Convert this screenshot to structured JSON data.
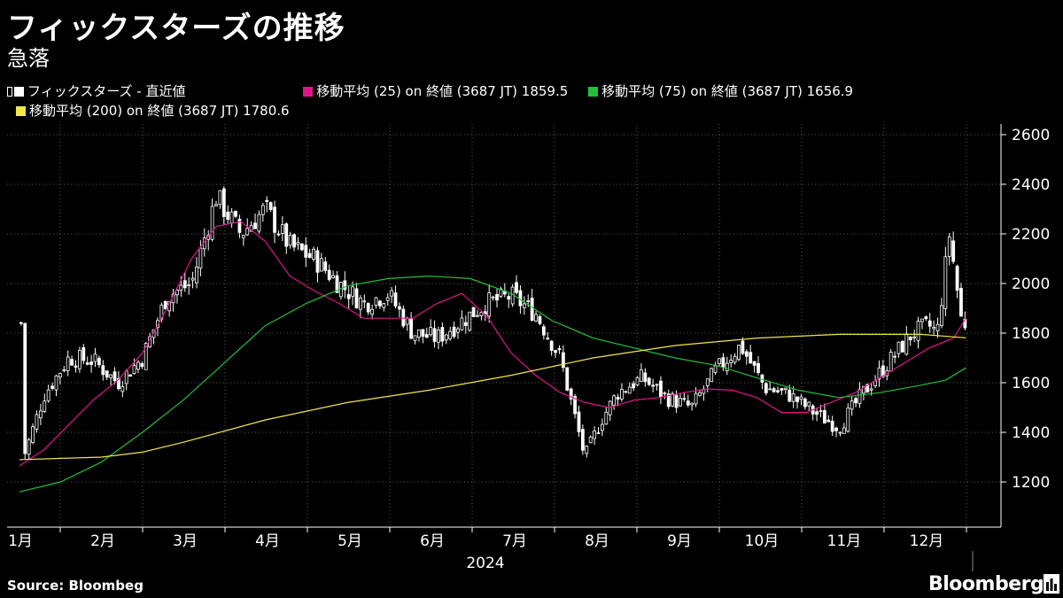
{
  "header": {
    "title": "フィックスターズの推移",
    "subtitle": "急落"
  },
  "legend": [
    {
      "label": "フィックスターズ - 直近値",
      "color": "#ffffff",
      "kind": "candle"
    },
    {
      "label": "移動平均 (25)  on 終値 (3687 JT) 1859.5",
      "color": "#e0158a",
      "kind": "square"
    },
    {
      "label": "移動平均 (75)  on 終値 (3687 JT) 1656.9",
      "color": "#22c03a",
      "kind": "square"
    },
    {
      "label": "移動平均 (200)  on 終値 (3687 JT) 1780.6",
      "color": "#f2e84a",
      "kind": "square"
    }
  ],
  "footer": {
    "source": "Source:  Bloombeg",
    "logo": "Bloomberg",
    "logo_icon": "bloomberg-terminal-icon"
  },
  "colors": {
    "background": "#000000",
    "candle": "#ffffff",
    "ma25": "#e0158a",
    "ma75": "#22c03a",
    "ma200": "#f2e84a",
    "grid": "#5a5a5a"
  },
  "chart_data": {
    "type": "line",
    "year_label": "2024",
    "x_categories": [
      "1月",
      "2月",
      "3月",
      "4月",
      "5月",
      "6月",
      "7月",
      "8月",
      "9月",
      "10月",
      "11月",
      "12月"
    ],
    "y_ticks": [
      1200,
      1400,
      1600,
      1800,
      2000,
      2200,
      2400,
      2600
    ],
    "ylim": [
      1050,
      2600
    ],
    "grid": "dotted vertical and horizontal",
    "candles_close_approx": {
      "months": [
        0.05,
        0.3,
        0.6,
        0.9,
        1.2,
        1.5,
        1.8,
        2.1,
        2.4,
        2.7,
        3.0,
        3.3,
        3.6,
        3.9,
        4.2,
        4.5,
        4.8,
        5.1,
        5.4,
        5.7,
        6.0,
        6.3,
        6.6,
        6.9,
        7.1,
        7.3,
        7.6,
        7.9,
        8.2,
        8.5,
        8.8,
        9.1,
        9.4,
        9.7,
        10.0,
        10.3,
        10.6,
        10.9,
        11.1,
        11.2,
        11.35,
        11.5
      ],
      "close": [
        1300,
        1550,
        1700,
        1690,
        1600,
        1700,
        1950,
        2000,
        2350,
        2200,
        2300,
        2150,
        2100,
        2000,
        1920,
        1960,
        1800,
        1780,
        1850,
        1920,
        1950,
        1880,
        1700,
        1300,
        1450,
        1560,
        1620,
        1540,
        1500,
        1650,
        1750,
        1580,
        1550,
        1480,
        1420,
        1560,
        1680,
        1800,
        1830,
        1800,
        2200,
        1840
      ]
    },
    "series": [
      {
        "name": "移動平均 (25)  on 終値 (3687 JT) 1859.5",
        "x": [
          0,
          0.3,
          0.6,
          0.9,
          1.2,
          1.5,
          1.8,
          2.1,
          2.4,
          2.7,
          3.0,
          3.3,
          3.6,
          3.9,
          4.2,
          4.5,
          4.8,
          5.1,
          5.4,
          5.7,
          6.0,
          6.3,
          6.6,
          6.9,
          7.2,
          7.5,
          7.8,
          8.1,
          8.4,
          8.7,
          9.0,
          9.3,
          9.6,
          9.9,
          10.2,
          10.5,
          10.8,
          11.1,
          11.4,
          11.55
        ],
        "values": [
          1265,
          1330,
          1430,
          1530,
          1610,
          1720,
          1900,
          2100,
          2230,
          2250,
          2170,
          2030,
          1970,
          1920,
          1860,
          1860,
          1860,
          1920,
          1960,
          1870,
          1720,
          1630,
          1560,
          1520,
          1500,
          1530,
          1540,
          1560,
          1575,
          1570,
          1540,
          1480,
          1480,
          1520,
          1560,
          1620,
          1680,
          1740,
          1780,
          1860
        ]
      },
      {
        "name": "移動平均 (75)  on 終値 (3687 JT) 1656.9",
        "x": [
          0,
          0.5,
          1.0,
          1.5,
          2.0,
          2.5,
          3.0,
          3.5,
          4.0,
          4.5,
          5.0,
          5.5,
          6.0,
          6.5,
          7.0,
          7.5,
          8.0,
          8.5,
          9.0,
          9.5,
          10.0,
          10.5,
          11.0,
          11.3,
          11.55
        ],
        "values": [
          1160,
          1200,
          1280,
          1400,
          1530,
          1680,
          1830,
          1920,
          1990,
          2020,
          2030,
          2020,
          1960,
          1850,
          1780,
          1740,
          1700,
          1670,
          1620,
          1570,
          1540,
          1560,
          1590,
          1610,
          1660
        ]
      },
      {
        "name": "移動平均 (200)  on 終値 (3687 JT) 1780.6",
        "x": [
          0,
          1.0,
          1.5,
          2.0,
          3.0,
          4.0,
          5.0,
          6.0,
          7.0,
          8.0,
          9.0,
          10.0,
          10.5,
          11.0,
          11.55
        ],
        "values": [
          1290,
          1300,
          1320,
          1360,
          1450,
          1520,
          1570,
          1630,
          1700,
          1750,
          1780,
          1795,
          1795,
          1795,
          1781
        ]
      }
    ]
  }
}
